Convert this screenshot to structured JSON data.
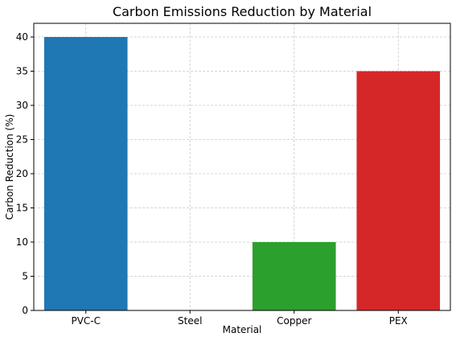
{
  "chart_data": {
    "type": "bar",
    "title": "Carbon Emissions Reduction by Material",
    "xlabel": "Material",
    "ylabel": "Carbon Reduction (%)",
    "categories": [
      "PVC-C",
      "Steel",
      "Copper",
      "PEX"
    ],
    "values": [
      40,
      0,
      10,
      35
    ],
    "colors": [
      "#1f77b4",
      "#ff7f0e",
      "#2ca02c",
      "#d62728"
    ],
    "ylim": [
      0,
      42
    ],
    "yticks": [
      0,
      5,
      10,
      15,
      20,
      25,
      30,
      35,
      40
    ],
    "grid": true,
    "grid_style": "dashed"
  }
}
